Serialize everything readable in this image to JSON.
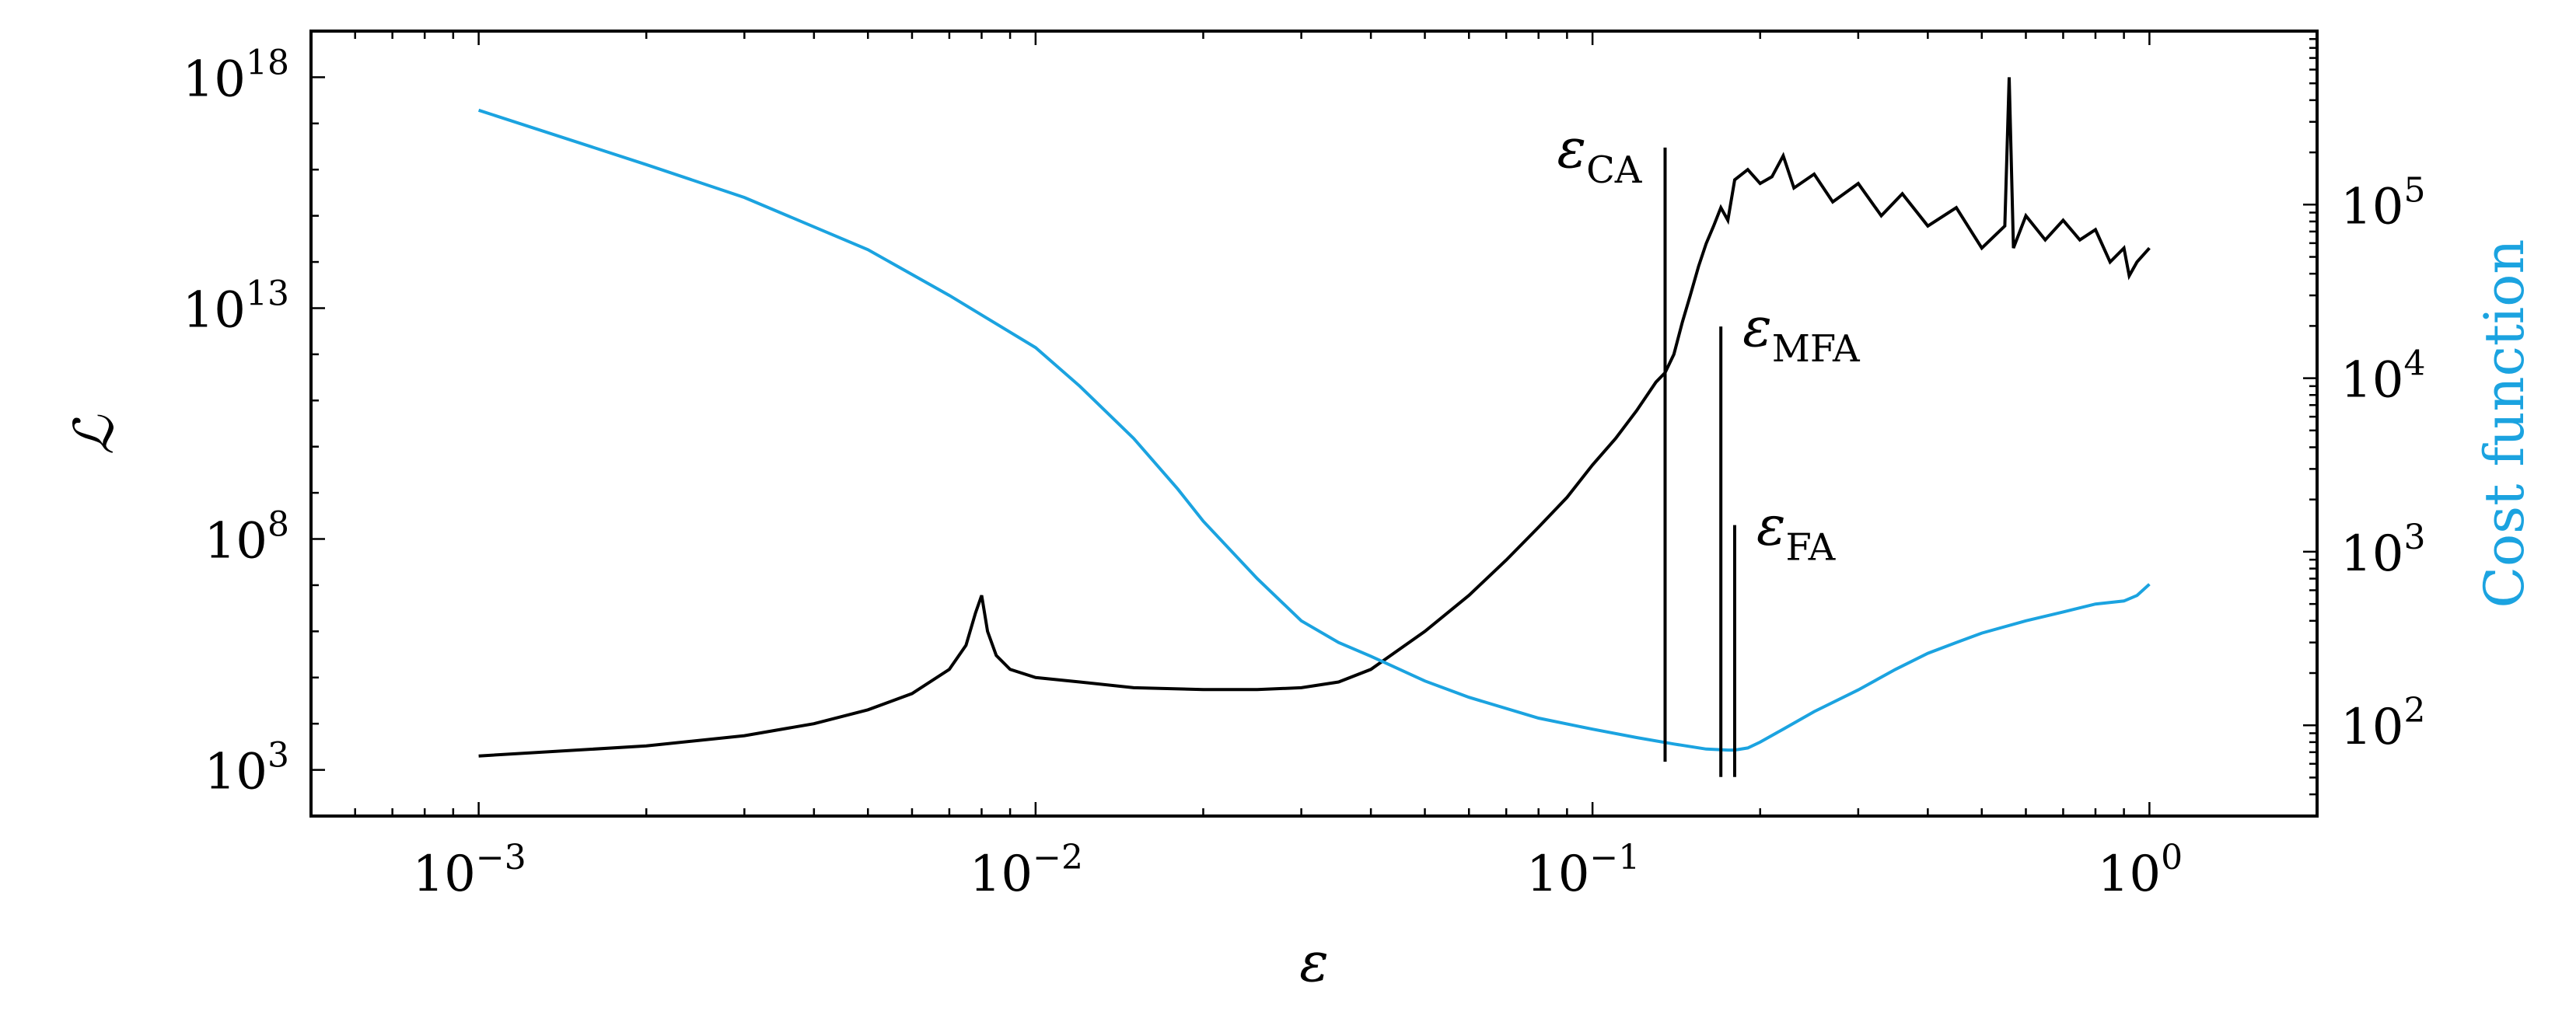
{
  "chart_data": {
    "type": "line",
    "title": "",
    "xlabel": "ε",
    "ylabel_left": "ℒ",
    "ylabel_right": "Cost function",
    "xscale": "log",
    "yscale_left": "log",
    "yscale_right": "log",
    "xlim": [
      0.0005,
      2.0
    ],
    "ylim_left": [
      100,
      1e+19
    ],
    "ylim_right": [
      30,
      1000000
    ],
    "grid": false,
    "x_ticks": [
      {
        "value": 0.001,
        "base": "10",
        "exp": "−3"
      },
      {
        "value": 0.01,
        "base": "10",
        "exp": "−2"
      },
      {
        "value": 0.1,
        "base": "10",
        "exp": "−1"
      },
      {
        "value": 1.0,
        "base": "10",
        "exp": "0"
      }
    ],
    "y_left_ticks": [
      {
        "value": 1000.0,
        "base": "10",
        "exp": "3"
      },
      {
        "value": 100000000.0,
        "base": "10",
        "exp": "8"
      },
      {
        "value": 10000000000000.0,
        "base": "10",
        "exp": "13"
      },
      {
        "value": 1e+18,
        "base": "10",
        "exp": "18"
      }
    ],
    "y_right_ticks": [
      {
        "value": 100.0,
        "base": "10",
        "exp": "2"
      },
      {
        "value": 1000.0,
        "base": "10",
        "exp": "3"
      },
      {
        "value": 10000.0,
        "base": "10",
        "exp": "4"
      },
      {
        "value": 100000.0,
        "base": "10",
        "exp": "5"
      }
    ],
    "series": [
      {
        "name": "ℒ",
        "axis": "left",
        "color": "#000000",
        "x": [
          0.001,
          0.002,
          0.003,
          0.004,
          0.005,
          0.006,
          0.007,
          0.0075,
          0.0078,
          0.008,
          0.0082,
          0.0085,
          0.009,
          0.01,
          0.012,
          0.015,
          0.02,
          0.025,
          0.03,
          0.035,
          0.04,
          0.05,
          0.06,
          0.07,
          0.08,
          0.09,
          0.1,
          0.11,
          0.12,
          0.13,
          0.135,
          0.14,
          0.145,
          0.15,
          0.155,
          0.16,
          0.165,
          0.17,
          0.175,
          0.18,
          0.19,
          0.2,
          0.21,
          0.22,
          0.23,
          0.25,
          0.27,
          0.3,
          0.33,
          0.36,
          0.4,
          0.45,
          0.5,
          0.55,
          0.56,
          0.57,
          0.6,
          0.65,
          0.7,
          0.75,
          0.8,
          0.85,
          0.9,
          0.92,
          0.95,
          1.0
        ],
        "y": [
          2000.0,
          3300.0,
          5500.0,
          10000.0,
          20000.0,
          45000.0,
          150000.0,
          500000.0,
          2500000.0,
          6000000.0,
          1000000.0,
          300000.0,
          150000.0,
          100000.0,
          80000.0,
          60000.0,
          55000.0,
          55000.0,
          60000.0,
          80000.0,
          150000.0,
          1000000.0,
          6000000.0,
          35000000.0,
          180000000.0,
          800000000.0,
          4000000000.0,
          15000000000.0,
          60000000000.0,
          250000000000.0,
          400000000000.0,
          1000000000000.0,
          5000000000000.0,
          20000000000000.0,
          80000000000000.0,
          250000000000000.0,
          600000000000000.0,
          1500000000000000.0,
          800000000000000.0,
          6000000000000000.0,
          1e+16,
          5000000000000000.0,
          7000000000000000.0,
          2e+16,
          4000000000000000.0,
          8000000000000000.0,
          2000000000000000.0,
          5000000000000000.0,
          1000000000000000.0,
          3000000000000000.0,
          600000000000000.0,
          1500000000000000.0,
          200000000000000.0,
          600000000000000.0,
          1e+18,
          200000000000000.0,
          1000000000000000.0,
          300000000000000.0,
          800000000000000.0,
          300000000000000.0,
          500000000000000.0,
          100000000000000.0,
          200000000000000.0,
          50000000000000.0,
          100000000000000.0,
          200000000000000.0
        ]
      },
      {
        "name": "Cost function",
        "axis": "right",
        "color": "#1ba3e0",
        "x": [
          0.001,
          0.002,
          0.003,
          0.005,
          0.007,
          0.01,
          0.012,
          0.015,
          0.018,
          0.02,
          0.025,
          0.03,
          0.035,
          0.04,
          0.05,
          0.06,
          0.08,
          0.1,
          0.12,
          0.14,
          0.16,
          0.175,
          0.18,
          0.19,
          0.2,
          0.22,
          0.25,
          0.3,
          0.35,
          0.4,
          0.45,
          0.5,
          0.6,
          0.7,
          0.8,
          0.9,
          0.95,
          1.0
        ],
        "y": [
          350000,
          170000,
          110000,
          55000,
          30000,
          15000,
          9000,
          4500,
          2300,
          1500,
          700,
          400,
          300,
          250,
          180,
          145,
          110,
          95,
          85,
          78,
          73,
          72,
          72,
          74,
          80,
          95,
          120,
          160,
          210,
          260,
          300,
          340,
          400,
          450,
          500,
          520,
          560,
          650
        ]
      }
    ],
    "annotations": [
      {
        "label": "ε",
        "sub": "CA",
        "x": 0.135,
        "y_top": 3e+16,
        "y_bottom": 1500
      },
      {
        "label": "ε",
        "sub": "MFA",
        "x": 0.17,
        "y_top": 4000000000000.0,
        "y_bottom": 700
      },
      {
        "label": "ε",
        "sub": "FA",
        "x": 0.18,
        "y_top": 200000000.0,
        "y_bottom": 700
      }
    ]
  }
}
